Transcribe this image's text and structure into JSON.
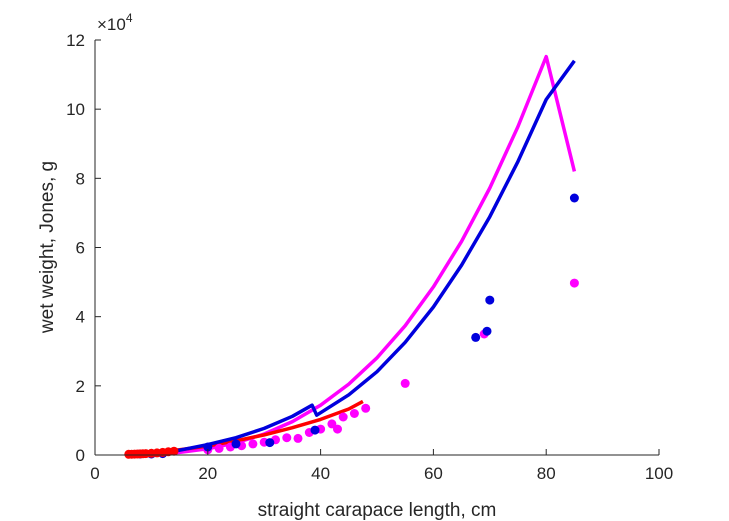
{
  "chart_data": {
    "type": "scatter",
    "xlabel": "straight carapace length, cm",
    "ylabel": "wet weight, Jones, g",
    "exponent_label": "×10",
    "exponent_power": "4",
    "xlim": [
      0,
      100
    ],
    "ylim": [
      0,
      120000
    ],
    "x_ticks": [
      0,
      20,
      40,
      60,
      80,
      100
    ],
    "y_ticks": [
      0,
      20000,
      40000,
      60000,
      80000,
      100000,
      120000
    ],
    "x_tick_labels": [
      "0",
      "20",
      "40",
      "60",
      "80",
      "100"
    ],
    "y_tick_labels": [
      "0",
      "2",
      "4",
      "6",
      "8",
      "10",
      "12"
    ],
    "grid": false,
    "legend": "none",
    "series": [
      {
        "kind": "points",
        "color": "#ff00ff",
        "x": [
          20,
          22,
          24,
          26,
          28,
          30,
          32,
          34,
          36,
          38,
          40,
          42,
          43,
          44,
          46,
          48,
          55,
          69,
          85
        ],
        "y": [
          1500,
          1900,
          2300,
          2700,
          3200,
          3700,
          4400,
          5000,
          4800,
          6500,
          7500,
          9000,
          7500,
          11000,
          12000,
          13500,
          20700,
          35000,
          49700
        ]
      },
      {
        "kind": "points",
        "color": "#0000dd",
        "x": [
          8,
          10,
          12,
          20,
          25,
          31,
          39,
          67.5,
          69.5,
          70,
          85
        ],
        "y": [
          300,
          300,
          400,
          2300,
          3200,
          3600,
          7200,
          34000,
          35800,
          44800,
          74300
        ]
      },
      {
        "kind": "points",
        "color": "#ff0000",
        "x": [
          6,
          6.5,
          7,
          7.5,
          8,
          8.5,
          9,
          10,
          11,
          12,
          13,
          14
        ],
        "y": [
          200,
          220,
          250,
          280,
          320,
          360,
          400,
          500,
          620,
          760,
          920,
          1100
        ]
      },
      {
        "kind": "line",
        "color": "#ff00ff",
        "x": [
          8,
          10,
          15,
          20,
          25,
          30,
          35,
          40,
          45,
          50,
          55,
          60,
          65,
          70,
          75,
          80,
          85
        ],
        "y": [
          115,
          225,
          760,
          1800,
          3520,
          6080,
          9660,
          14400,
          20500,
          28100,
          37400,
          48600,
          61800,
          77200,
          95000,
          115200,
          82000
        ]
      },
      {
        "kind": "line",
        "color": "#ff0000",
        "x": [
          6,
          10,
          15,
          20,
          25,
          30,
          35,
          40,
          45,
          47.5
        ],
        "y": [
          150,
          550,
          1500,
          2600,
          4100,
          5800,
          7900,
          10300,
          13300,
          15500
        ]
      },
      {
        "kind": "line",
        "color": "#0000dd",
        "x": [
          6,
          10,
          15,
          20,
          25,
          30,
          35,
          38.5,
          39.3,
          45,
          50,
          55,
          60,
          65,
          70,
          75,
          80,
          85
        ],
        "y": [
          100,
          420,
          1400,
          3000,
          5000,
          7700,
          11200,
          14400,
          11500,
          17400,
          24100,
          32600,
          42800,
          54900,
          68900,
          84900,
          102800,
          114000
        ]
      }
    ]
  }
}
